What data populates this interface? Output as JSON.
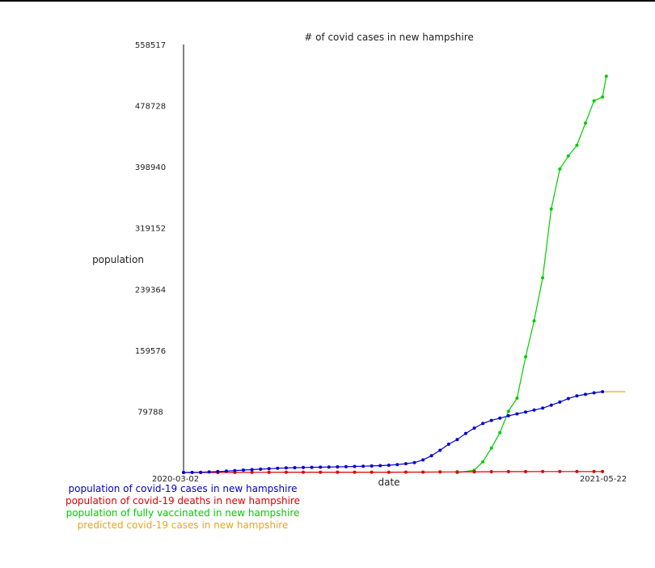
{
  "chart_data": {
    "type": "line",
    "title": "# of covid cases in new hampshire",
    "xlabel": "date",
    "ylabel": "population",
    "x_tick_labels": [
      "2020-03-02",
      "2021-05-22"
    ],
    "x_range": [
      "2020-03-02",
      "2021-05-22"
    ],
    "y_range": [
      0,
      558517
    ],
    "y_ticks": [
      79788,
      159576,
      239364,
      319152,
      398940,
      478728,
      558517
    ],
    "grid": false,
    "legend_position": "bottom-left",
    "series": [
      {
        "name": "population of covid-19 cases in new hampshire",
        "color": "#0000cc",
        "x": [
          "2020-03-02",
          "2020-03-11",
          "2020-03-20",
          "2020-03-29",
          "2020-04-07",
          "2020-04-16",
          "2020-04-25",
          "2020-05-04",
          "2020-05-13",
          "2020-05-22",
          "2020-05-31",
          "2020-06-09",
          "2020-06-18",
          "2020-06-27",
          "2020-07-06",
          "2020-07-15",
          "2020-07-24",
          "2020-08-02",
          "2020-08-11",
          "2020-08-20",
          "2020-08-29",
          "2020-09-07",
          "2020-09-16",
          "2020-09-25",
          "2020-10-04",
          "2020-10-13",
          "2020-10-22",
          "2020-10-31",
          "2020-11-09",
          "2020-11-18",
          "2020-11-27",
          "2020-12-06",
          "2020-12-15",
          "2020-12-24",
          "2021-01-02",
          "2021-01-11",
          "2021-01-20",
          "2021-01-29",
          "2021-02-07",
          "2021-02-16",
          "2021-02-25",
          "2021-03-06",
          "2021-03-15",
          "2021-03-24",
          "2021-04-02",
          "2021-04-11",
          "2021-04-20",
          "2021-04-29",
          "2021-05-08",
          "2021-05-17"
        ],
        "values": [
          0,
          100,
          300,
          800,
          1300,
          1800,
          2500,
          3200,
          3800,
          4300,
          5000,
          5600,
          6000,
          6300,
          6500,
          6800,
          7000,
          7200,
          7400,
          7600,
          7900,
          8200,
          8600,
          9000,
          9500,
          10300,
          11500,
          13000,
          16500,
          22000,
          29000,
          37000,
          43000,
          51000,
          58000,
          64000,
          68000,
          71000,
          74000,
          76500,
          79000,
          81500,
          84000,
          88000,
          92000,
          96500,
          100000,
          102000,
          104000,
          105500
        ]
      },
      {
        "name": "population of covid-19 deaths in new hampshire",
        "color": "#dd0000",
        "x": [
          "2020-03-02",
          "2020-03-20",
          "2020-04-07",
          "2020-04-25",
          "2020-05-13",
          "2020-05-31",
          "2020-06-18",
          "2020-07-06",
          "2020-07-24",
          "2020-08-11",
          "2020-08-29",
          "2020-09-16",
          "2020-10-04",
          "2020-10-22",
          "2020-11-09",
          "2020-11-27",
          "2020-12-15",
          "2021-01-02",
          "2021-01-20",
          "2021-02-07",
          "2021-02-25",
          "2021-03-15",
          "2021-04-02",
          "2021-04-20",
          "2021-05-08",
          "2021-05-17"
        ],
        "values": [
          0,
          10,
          50,
          150,
          250,
          350,
          400,
          410,
          420,
          430,
          440,
          450,
          460,
          480,
          560,
          700,
          850,
          1000,
          1100,
          1150,
          1200,
          1220,
          1240,
          1260,
          1280,
          1300
        ]
      },
      {
        "name": "population of fully vaccinated in new hampshire",
        "color": "#00cc00",
        "x": [
          "2020-12-15",
          "2021-01-02",
          "2021-01-11",
          "2021-01-20",
          "2021-01-29",
          "2021-02-07",
          "2021-02-16",
          "2021-02-25",
          "2021-03-06",
          "2021-03-15",
          "2021-03-24",
          "2021-04-02",
          "2021-04-11",
          "2021-04-20",
          "2021-04-29",
          "2021-05-08",
          "2021-05-17",
          "2021-05-21"
        ],
        "values": [
          0,
          3000,
          14000,
          32000,
          52000,
          80000,
          97000,
          151000,
          198000,
          254000,
          344000,
          396000,
          413000,
          427000,
          456000,
          485000,
          490000,
          517000
        ]
      },
      {
        "name": "predicted covid-19 cases in new hampshire",
        "color": "#e6a817",
        "x": [
          "2021-05-17",
          "2021-06-10"
        ],
        "values": [
          105500,
          105500
        ]
      }
    ]
  }
}
